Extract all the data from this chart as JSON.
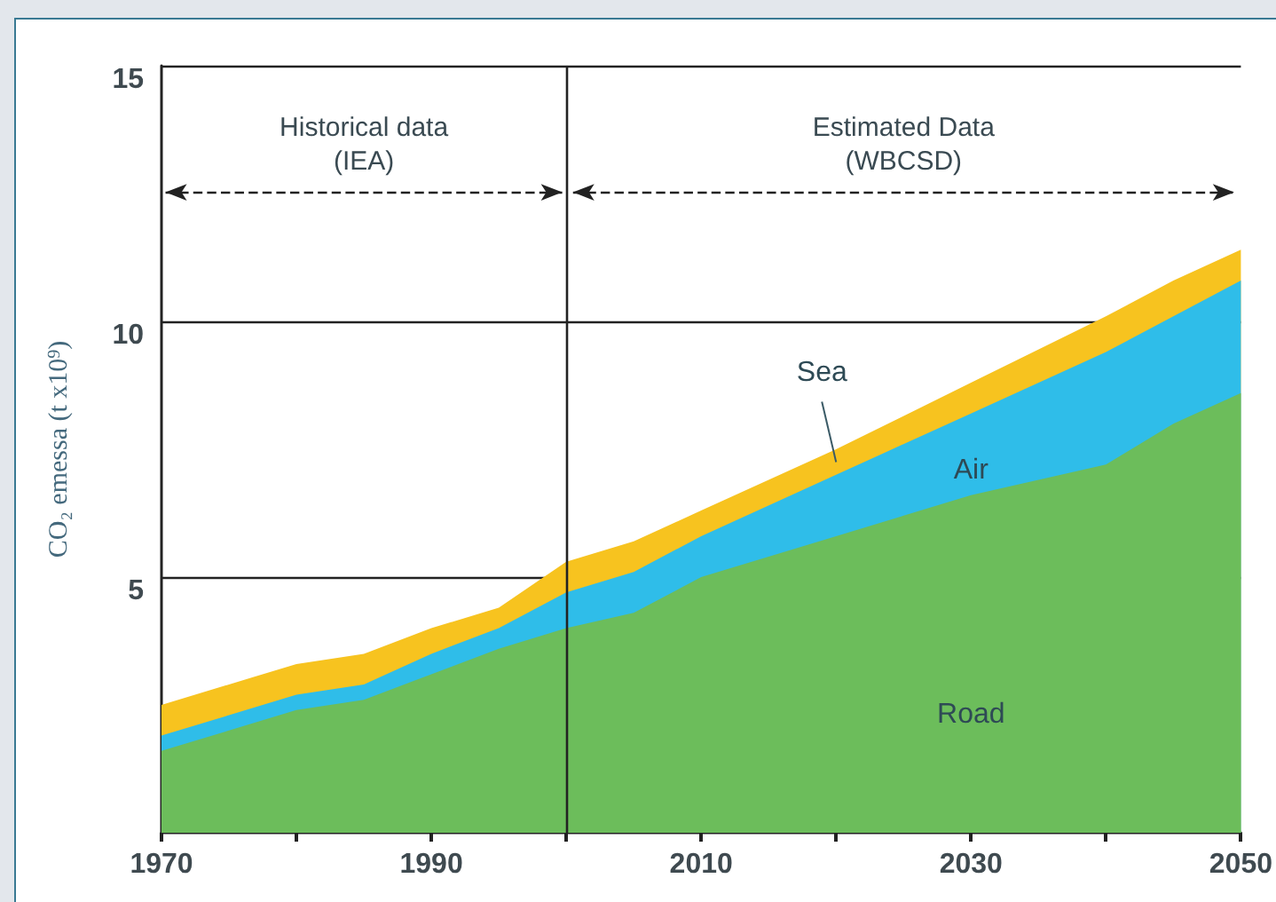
{
  "chart_data": {
    "type": "area",
    "stacked": true,
    "ylabel": "CO₂ emessa (t x10$^{9}$)",
    "x": [
      1970,
      1980,
      1985,
      1990,
      1995,
      2000,
      2005,
      2010,
      2020,
      2030,
      2040,
      2045,
      2050
    ],
    "series": [
      {
        "name": "Road",
        "color": "#6cbd5b",
        "values": [
          1.6,
          2.4,
          2.6,
          3.1,
          3.6,
          4.0,
          4.3,
          5.0,
          5.8,
          6.6,
          7.2,
          8.0,
          8.6
        ]
      },
      {
        "name": "Air",
        "color": "#2fbde9",
        "values": [
          0.3,
          0.3,
          0.3,
          0.4,
          0.4,
          0.7,
          0.8,
          0.8,
          1.2,
          1.6,
          2.2,
          2.1,
          2.2
        ]
      },
      {
        "name": "Sea",
        "color": "#f7c31f",
        "values": [
          0.6,
          0.6,
          0.6,
          0.5,
          0.4,
          0.6,
          0.6,
          0.5,
          0.5,
          0.6,
          0.7,
          0.7,
          0.6
        ]
      }
    ],
    "xlim": [
      1970,
      2050
    ],
    "xticks": [
      1970,
      {
        "value": 1980,
        "label": null
      },
      1990,
      {
        "value": 2000,
        "label": null
      },
      2010,
      {
        "value": 2020,
        "label": null
      },
      2030,
      {
        "value": 2040,
        "label": null
      },
      2050
    ],
    "ylim": [
      0,
      15
    ],
    "yticks": [
      5,
      10,
      15
    ],
    "grid": "y",
    "legend": false,
    "ref_lines": [
      {
        "axis": "x",
        "value": 2000
      }
    ],
    "annotations": [
      "Historical data\n(IEA)",
      "Estimated Data\n(WBCSD)"
    ]
  }
}
